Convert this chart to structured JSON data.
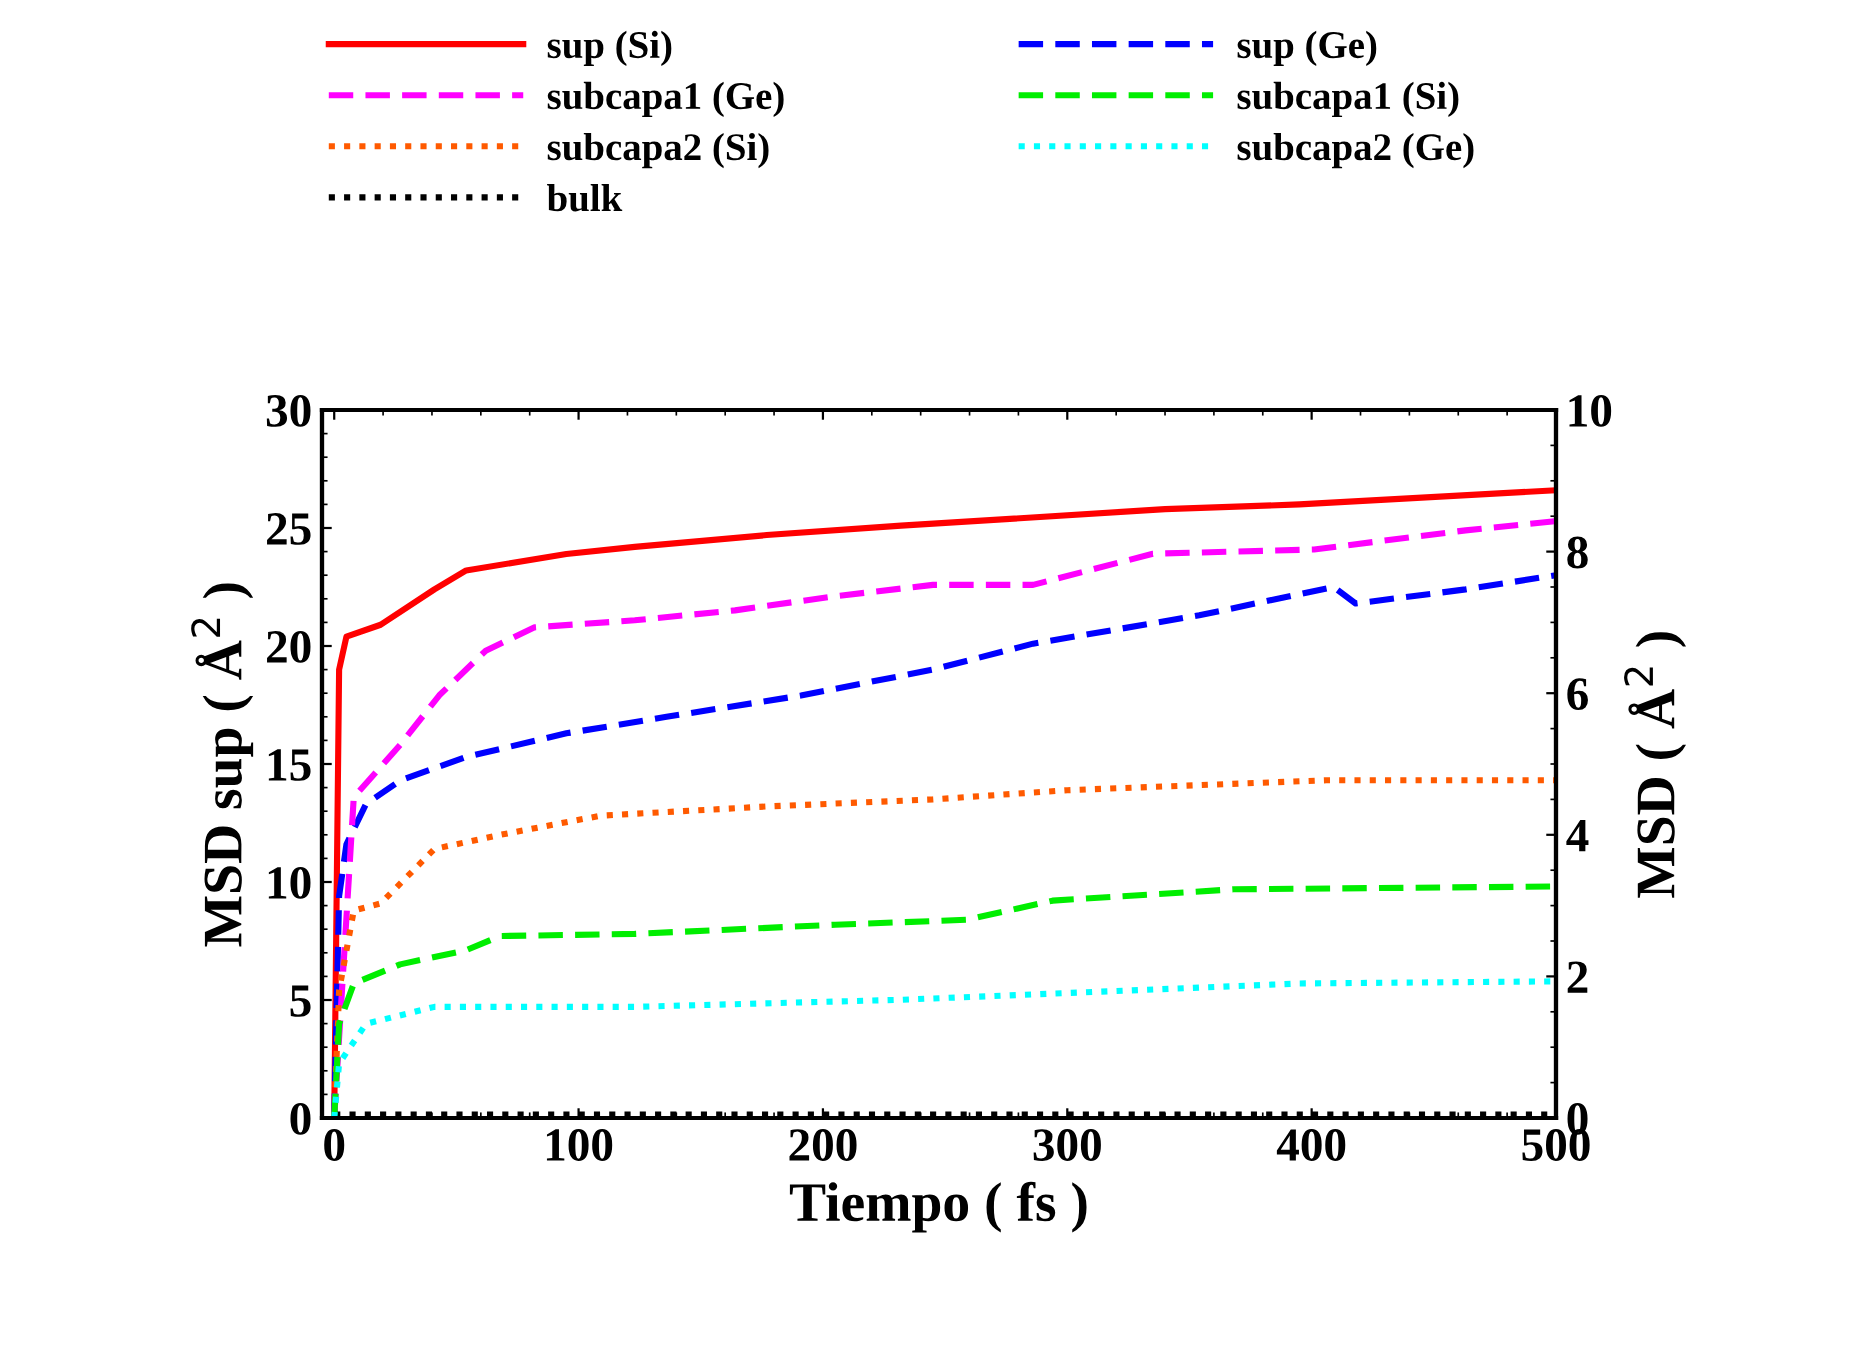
{
  "chart_data": {
    "type": "line",
    "xlabel": "Tiempo ( fs )",
    "ylabel": "MSD sup ( Å$^{2}$ )",
    "y2label": "MSD ( Å$^{2}$ )",
    "xlim": [
      -5,
      500
    ],
    "xticks": [
      0,
      100,
      200,
      300,
      400,
      500
    ],
    "ylim": [
      0,
      30
    ],
    "yticks": [
      0,
      5,
      10,
      15,
      20,
      25,
      30
    ],
    "y2lim": [
      0,
      10
    ],
    "y2ticks": [
      0,
      2,
      4,
      6,
      8,
      10
    ],
    "legend": "top",
    "grid": false,
    "series": [
      {
        "name": "sup (Si)",
        "color": "#ff0000",
        "line_style": "solid",
        "x": [
          0,
          2,
          5,
          19,
          41,
          54,
          95,
          123,
          177,
          232,
          340,
          395,
          500
        ],
        "values": [
          0,
          19.0,
          20.4,
          20.9,
          22.4,
          23.2,
          23.9,
          24.2,
          24.7,
          25.1,
          25.8,
          26.0,
          26.6
        ]
      },
      {
        "name": "subcapa1 (Ge)",
        "color": "#ff00ff",
        "line_style": "dashed",
        "axis": "y2",
        "x": [
          0,
          8,
          27,
          43,
          62,
          82,
          123,
          164,
          205,
          245,
          286,
          335,
          401,
          463,
          500
        ],
        "values": [
          0,
          4.53,
          5.27,
          5.97,
          6.6,
          6.93,
          7.03,
          7.17,
          7.37,
          7.53,
          7.53,
          7.97,
          8.03,
          8.3,
          8.43
        ]
      },
      {
        "name": "subcapa2 (Si)",
        "color": "#ff5a00",
        "line_style": "dotted",
        "axis": "y2",
        "x": [
          0,
          2,
          8,
          19,
          41,
          68,
          109,
          177,
          245,
          300,
          406,
          500
        ],
        "values": [
          0,
          1.8,
          2.93,
          3.03,
          3.8,
          4.0,
          4.27,
          4.4,
          4.5,
          4.63,
          4.77,
          4.77
        ]
      },
      {
        "name": "bulk",
        "color": "#000000",
        "line_style": "dotted",
        "axis": "y2",
        "x": [
          0,
          100,
          200,
          300,
          400,
          500
        ],
        "values": [
          0.05,
          0.05,
          0.05,
          0.05,
          0.05,
          0.05
        ]
      },
      {
        "name": "sup (Ge)",
        "color": "#0000ff",
        "line_style": "dashed",
        "x": [
          0,
          2,
          5,
          13,
          27,
          54,
          95,
          136,
          191,
          245,
          286,
          354,
          409,
          418,
          463,
          500
        ],
        "values": [
          0,
          9.4,
          11.6,
          13.3,
          14.3,
          15.3,
          16.3,
          17.0,
          17.9,
          19.0,
          20.1,
          21.3,
          22.5,
          21.8,
          22.4,
          23.0
        ]
      },
      {
        "name": "subcapa1 (Si)",
        "color": "#00ee00",
        "line_style": "dashed",
        "axis": "y2",
        "x": [
          0,
          2,
          8,
          27,
          54,
          68,
          123,
          205,
          259,
          294,
          368,
          500
        ],
        "values": [
          0,
          1.33,
          1.9,
          2.17,
          2.37,
          2.57,
          2.6,
          2.73,
          2.8,
          3.07,
          3.23,
          3.27
        ]
      },
      {
        "name": "subcapa2 (Ge)",
        "color": "#00ffff",
        "line_style": "dotted",
        "axis": "y2",
        "x": [
          0,
          2,
          13,
          41,
          123,
          232,
          395,
          500
        ],
        "values": [
          0,
          0.77,
          1.33,
          1.57,
          1.57,
          1.67,
          1.9,
          1.93
        ]
      }
    ]
  }
}
